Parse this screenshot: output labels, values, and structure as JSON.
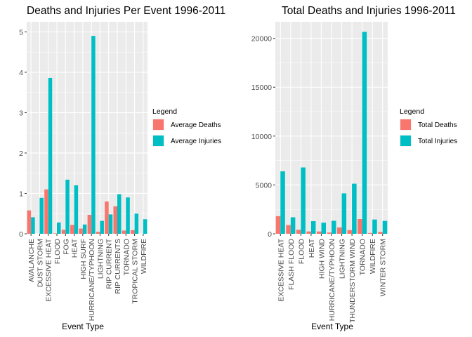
{
  "charts": [
    {
      "type": "bar",
      "title": "Deaths and Injuries Per Event 1996-2011",
      "xlabel": "Event Type",
      "ylabel": "",
      "ylim": [
        0,
        5.25
      ],
      "yticks": [
        0,
        1,
        2,
        3,
        4,
        5
      ],
      "grid": true,
      "legend_title": "Legend",
      "categories": [
        "AVALANCHE",
        "DUST STORM",
        "EXCESSIVE HEAT",
        "FLOOD",
        "FOG",
        "HEAT",
        "HIGH SURF",
        "HURRICANE/TYPHOON",
        "LIGHTNING",
        "RIP CURRENT",
        "RIP CURRENTS",
        "TORNADO",
        "TROPICAL STORM",
        "WILDFIRE"
      ],
      "series": [
        {
          "name": "Average Deaths",
          "color": "#f8766d",
          "values": [
            0.58,
            0.0,
            1.1,
            0.01,
            0.1,
            0.22,
            0.13,
            0.47,
            0.05,
            0.8,
            0.68,
            0.08,
            0.09,
            0.0
          ]
        },
        {
          "name": "Average Injuries",
          "color": "#00bfc4",
          "values": [
            0.41,
            0.89,
            3.86,
            0.28,
            1.34,
            1.2,
            0.23,
            4.9,
            0.32,
            0.48,
            0.98,
            0.9,
            0.5,
            0.36
          ]
        }
      ]
    },
    {
      "type": "bar",
      "title": "Total Deaths and Injuries 1996-2011",
      "xlabel": "Event Type",
      "ylabel": "",
      "ylim": [
        0,
        21700
      ],
      "yticks": [
        0,
        5000,
        10000,
        15000,
        20000
      ],
      "grid": true,
      "legend_title": "Legend",
      "categories": [
        "EXCESSIVE HEAT",
        "FLASH FLOOD",
        "FLOOD",
        "HEAT",
        "HIGH WIND",
        "HURRICANE/TYPHOON",
        "LIGHTNING",
        "THUNDERSTORM WIND",
        "TORNADO",
        "WILDFIRE",
        "WINTER STORM"
      ],
      "series": [
        {
          "name": "Total Deaths",
          "color": "#f8766d",
          "values": [
            1800,
            890,
            410,
            240,
            240,
            130,
            650,
            380,
            1510,
            80,
            190
          ]
        },
        {
          "name": "Total Injuries",
          "color": "#00bfc4",
          "values": [
            6390,
            1690,
            6790,
            1290,
            1140,
            1330,
            4140,
            5130,
            20670,
            1460,
            1320
          ]
        }
      ]
    }
  ]
}
